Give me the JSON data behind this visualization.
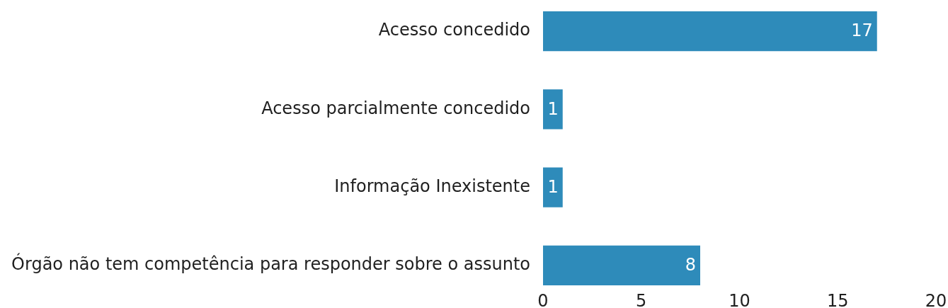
{
  "chart_data": {
    "type": "bar",
    "orientation": "horizontal",
    "categories": [
      "Acesso concedido",
      "Acesso parcialmente concedido",
      "Informação Inexistente",
      "Órgão não tem competência para responder sobre o assunto"
    ],
    "values": [
      17,
      1,
      1,
      8
    ],
    "color": "#2e8bba",
    "xlim": [
      0,
      20
    ],
    "xticks": [
      0,
      5,
      10,
      15,
      20
    ],
    "data_labels": true
  }
}
